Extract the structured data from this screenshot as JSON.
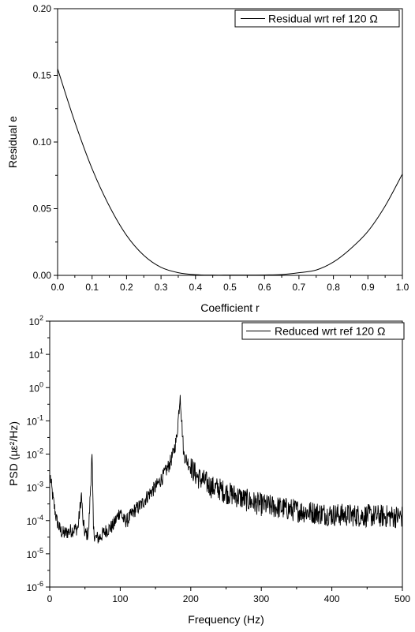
{
  "chart_data": [
    {
      "type": "line",
      "xlabel": "Coefficient r",
      "ylabel": "Residual e",
      "xlim": [
        0.0,
        1.0
      ],
      "ylim": [
        0.0,
        0.2
      ],
      "x_ticks": [
        "0.0",
        "0.1",
        "0.2",
        "0.3",
        "0.4",
        "0.5",
        "0.6",
        "0.7",
        "0.8",
        "0.9",
        "1.0"
      ],
      "y_ticks": [
        "0.00",
        "0.05",
        "0.10",
        "0.15",
        "0.20"
      ],
      "legend": "top-right",
      "grid": false,
      "series": [
        {
          "name": "Residual wrt ref 120 Ω",
          "x": [
            0.0,
            0.05,
            0.1,
            0.15,
            0.2,
            0.25,
            0.3,
            0.35,
            0.4,
            0.45,
            0.5,
            0.55,
            0.6,
            0.65,
            0.7,
            0.75,
            0.8,
            0.85,
            0.9,
            0.95,
            1.0
          ],
          "y": [
            0.155,
            0.115,
            0.08,
            0.052,
            0.03,
            0.015,
            0.006,
            0.002,
            0.0005,
            0.0002,
            0.0002,
            0.0002,
            0.0003,
            0.0006,
            0.002,
            0.004,
            0.01,
            0.02,
            0.033,
            0.052,
            0.076
          ]
        }
      ]
    },
    {
      "type": "line",
      "xlabel": "Frequency (Hz)",
      "ylabel": "PSD (µε²/Hz)",
      "xlim": [
        0,
        500
      ],
      "ylim": [
        1e-06,
        100
      ],
      "yscale": "log",
      "x_ticks": [
        "0",
        "100",
        "200",
        "300",
        "400",
        "500"
      ],
      "y_ticks": [
        {
          "base": "10",
          "exp": "2"
        },
        {
          "base": "10",
          "exp": "1"
        },
        {
          "base": "10",
          "exp": "0"
        },
        {
          "base": "10",
          "exp": "-1"
        },
        {
          "base": "10",
          "exp": "-2"
        },
        {
          "base": "10",
          "exp": "-3"
        },
        {
          "base": "10",
          "exp": "-4"
        },
        {
          "base": "10",
          "exp": "-5"
        },
        {
          "base": "10",
          "exp": "-6"
        }
      ],
      "legend": "top-right",
      "grid": false,
      "series": [
        {
          "name": "Reduced wrt ref 120 Ω",
          "x": [
            1,
            5,
            10,
            15,
            20,
            30,
            40,
            45,
            47,
            50,
            55,
            60,
            62,
            65,
            70,
            80,
            90,
            100,
            105,
            110,
            120,
            130,
            140,
            150,
            160,
            170,
            175,
            180,
            185,
            188,
            190,
            195,
            200,
            210,
            220,
            230,
            240,
            250,
            260,
            280,
            300,
            350,
            400,
            450,
            500
          ],
          "y": [
            0.002,
            0.0004,
            0.0001,
            5e-05,
            4e-05,
            5e-05,
            6e-05,
            0.0006,
            0.0001,
            4e-05,
            4e-05,
            0.01,
            5e-05,
            3e-05,
            3e-05,
            5e-05,
            7e-05,
            0.0002,
            0.0001,
            0.0001,
            0.0002,
            0.0003,
            0.0006,
            0.001,
            0.002,
            0.005,
            0.01,
            0.03,
            0.6,
            0.05,
            0.01,
            0.006,
            0.004,
            0.002,
            0.0015,
            0.001,
            0.0009,
            0.0007,
            0.0006,
            0.0004,
            0.0003,
            0.0002,
            0.00015,
            0.00014,
            0.00013
          ]
        }
      ]
    }
  ]
}
